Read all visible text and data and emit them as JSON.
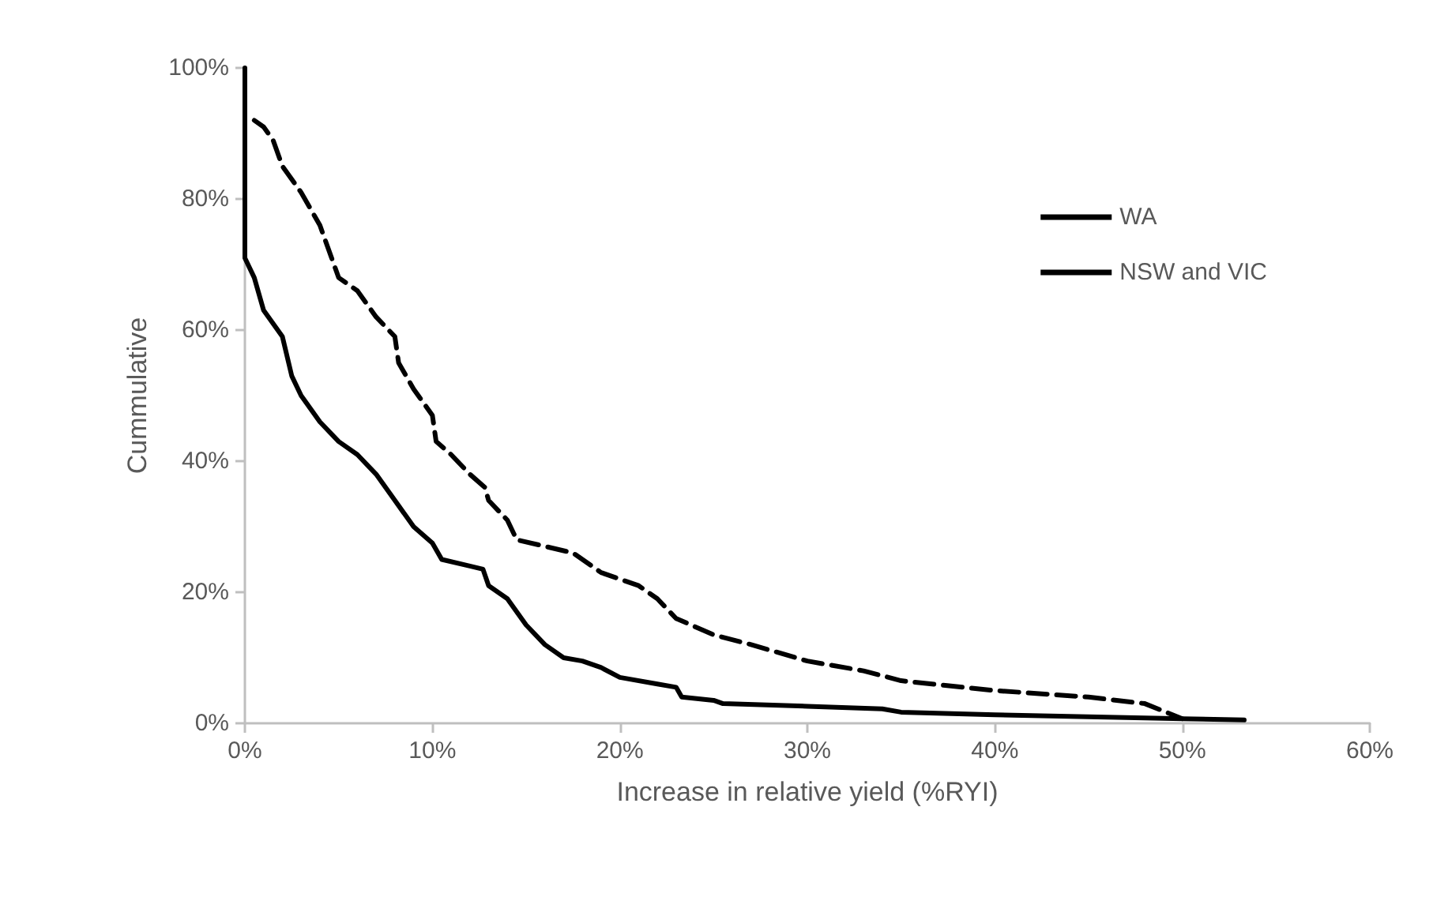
{
  "chart_data": {
    "type": "line",
    "xlabel": "Increase in relative yield (%RYI)",
    "ylabel": "Cummulative",
    "xlim": [
      0,
      60
    ],
    "xticks": [
      {
        "value": 0,
        "label": "0%"
      },
      {
        "value": 10,
        "label": "10%"
      },
      {
        "value": 20,
        "label": "20%"
      },
      {
        "value": 30,
        "label": "30%"
      },
      {
        "value": 40,
        "label": "40%"
      },
      {
        "value": 50,
        "label": "50%"
      },
      {
        "value": 60,
        "label": "60%"
      }
    ],
    "ylim": [
      0,
      100
    ],
    "yticks": [
      {
        "value": 0,
        "label": "0%"
      },
      {
        "value": 20,
        "label": "20%"
      },
      {
        "value": 40,
        "label": "40%"
      },
      {
        "value": 60,
        "label": "60%"
      },
      {
        "value": 80,
        "label": "80%"
      },
      {
        "value": 100,
        "label": "100%"
      }
    ],
    "grid": false,
    "legend": "top right",
    "marker": "none",
    "series": [
      {
        "name": "WA",
        "color": "#000000",
        "line_style": "solid",
        "x": [
          0,
          0,
          0.5,
          1,
          2,
          2.5,
          3,
          4,
          5,
          6,
          7,
          8,
          9,
          10,
          10.5,
          12,
          12.7,
          13,
          14,
          15,
          16,
          17,
          18,
          19,
          20,
          22,
          23,
          23.3,
          25,
          25.5,
          30,
          34,
          35,
          40,
          50,
          53.3
        ],
        "values": [
          100,
          71,
          68,
          63,
          59,
          53,
          50,
          46,
          43,
          41,
          38,
          34,
          30,
          27.5,
          25,
          24,
          23.5,
          21,
          19,
          15,
          12,
          10,
          9.5,
          8.5,
          7,
          6,
          5.5,
          4,
          3.5,
          3,
          2.6,
          2.2,
          1.7,
          1.3,
          0.7,
          0.5
        ]
      },
      {
        "name": "NSW and VIC",
        "color": "#000000",
        "line_style": "dashed",
        "x": [
          0.5,
          1,
          1.5,
          2,
          3,
          4,
          5,
          6,
          7,
          8,
          8.2,
          9,
          10,
          10.2,
          11,
          12,
          12.8,
          13,
          14,
          14.5,
          16,
          17.5,
          19,
          21,
          22,
          23,
          25,
          27,
          30,
          33,
          35,
          40,
          45,
          48,
          50
        ],
        "values": [
          92,
          91,
          89,
          85,
          81,
          76,
          68,
          66,
          62,
          59,
          55,
          51,
          47,
          43,
          41,
          38,
          36,
          34,
          31,
          28,
          27,
          26,
          23,
          21,
          19,
          16,
          13.5,
          12,
          9.5,
          8,
          6.5,
          5,
          4,
          3,
          0.7
        ]
      }
    ]
  }
}
